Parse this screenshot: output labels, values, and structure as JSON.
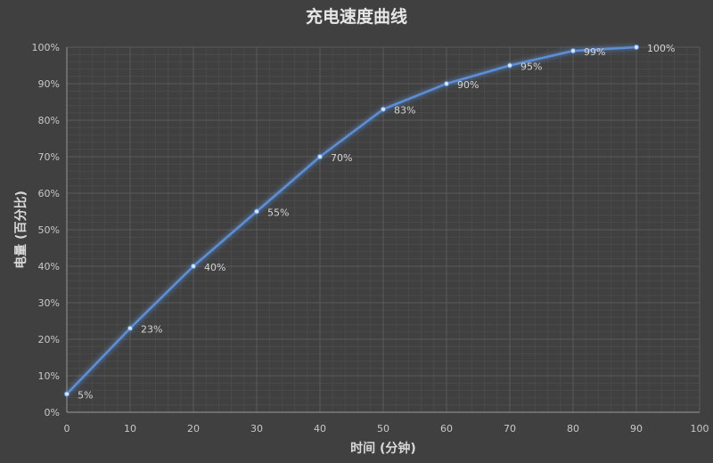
{
  "chart_data": {
    "type": "line",
    "title": "充电速度曲线",
    "xlabel": "时间 (分钟)",
    "ylabel": "电量 (百分比)",
    "x": [
      0,
      10,
      20,
      30,
      40,
      50,
      60,
      70,
      80,
      90
    ],
    "values": [
      5,
      23,
      40,
      55,
      70,
      83,
      90,
      95,
      99,
      100
    ],
    "data_labels": [
      "5%",
      "23%",
      "40%",
      "55%",
      "70%",
      "83%",
      "90%",
      "95%",
      "99%",
      "100%"
    ],
    "xlim": [
      0,
      100
    ],
    "ylim": [
      0,
      100
    ],
    "xticks": [
      "0",
      "10",
      "20",
      "30",
      "40",
      "50",
      "60",
      "70",
      "80",
      "90",
      "100"
    ],
    "yticks": [
      "0%",
      "10%",
      "20%",
      "30%",
      "40%",
      "50%",
      "60%",
      "70%",
      "80%",
      "90%",
      "100%"
    ],
    "grid": true,
    "minor_grid": true,
    "legend": "none",
    "colors": {
      "background": "#404040",
      "line": "#5b8fd6",
      "grid": "#5a5a5a",
      "minor_grid": "#4a4a4a"
    }
  }
}
